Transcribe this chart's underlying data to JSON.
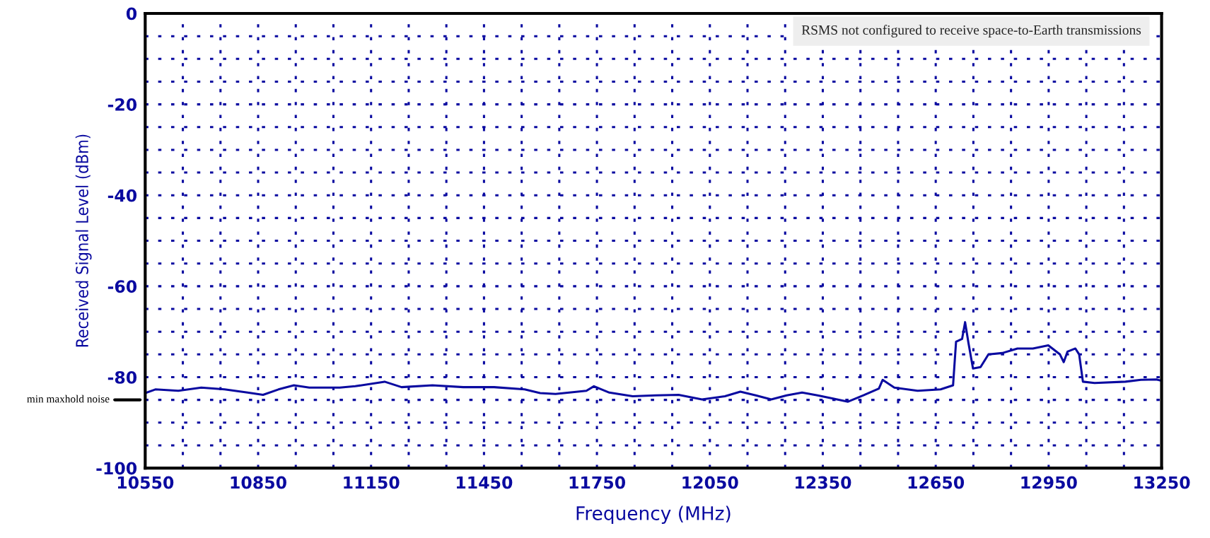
{
  "chart_data": {
    "type": "line",
    "xlabel": "Frequency (MHz)",
    "ylabel": "Received Signal Level (dBm)",
    "annotations": [
      "RSMS not configured to receive space-to-Earth transmissions"
    ],
    "x": [
      10550,
      10577,
      10638,
      10699,
      10761,
      10822,
      10863,
      10904,
      10945,
      10986,
      11067,
      11108,
      11186,
      11231,
      11313,
      11395,
      11477,
      11558,
      11599,
      11640,
      11722,
      11742,
      11783,
      11845,
      11906,
      11967,
      12029,
      12090,
      12131,
      12172,
      12213,
      12254,
      12295,
      12336,
      12377,
      12417,
      12458,
      12499,
      12509,
      12540,
      12602,
      12663,
      12696,
      12704,
      12720,
      12728,
      12737,
      12749,
      12769,
      12790,
      12827,
      12867,
      12908,
      12949,
      12980,
      12990,
      13000,
      13021,
      13031,
      13041,
      13072,
      13154,
      13195,
      13236,
      13250
    ],
    "series": [
      {
        "color": "#0a0aa0",
        "values": [
          -83.5,
          -82.7,
          -83,
          -82.3,
          -82.7,
          -83.4,
          -83.9,
          -82.7,
          -81.8,
          -82.3,
          -82.3,
          -82,
          -81,
          -82.2,
          -81.8,
          -82.2,
          -82.2,
          -82.7,
          -83.5,
          -83.7,
          -83,
          -82,
          -83.4,
          -84.2,
          -84,
          -83.9,
          -84.9,
          -84.2,
          -83.2,
          -84,
          -84.9,
          -84,
          -83.4,
          -84,
          -84.7,
          -85.4,
          -84,
          -82.5,
          -80.6,
          -82.3,
          -83,
          -82.7,
          -81.8,
          -72.2,
          -71.6,
          -67.9,
          -72.5,
          -78.1,
          -77.8,
          -75,
          -74.7,
          -73.7,
          -73.7,
          -73,
          -75,
          -76.7,
          -74.4,
          -73.7,
          -75,
          -81,
          -81.3,
          -81,
          -80.6,
          -80.5,
          -80.8
        ]
      }
    ],
    "xlim": [
      10550,
      13250
    ],
    "xticks": [
      10550,
      {
        "value": 10650,
        "label": null
      },
      {
        "value": 10750,
        "label": null
      },
      10850,
      {
        "value": 10950,
        "label": null
      },
      {
        "value": 11050,
        "label": null
      },
      11150,
      {
        "value": 11250,
        "label": null
      },
      {
        "value": 11350,
        "label": null
      },
      11450,
      {
        "value": 11550,
        "label": null
      },
      {
        "value": 11650,
        "label": null
      },
      11750,
      {
        "value": 11850,
        "label": null
      },
      {
        "value": 11950,
        "label": null
      },
      12050,
      {
        "value": 12150,
        "label": null
      },
      {
        "value": 12250,
        "label": null
      },
      12350,
      {
        "value": 12450,
        "label": null
      },
      {
        "value": 12550,
        "label": null
      },
      12650,
      {
        "value": 12750,
        "label": null
      },
      {
        "value": 12850,
        "label": null
      },
      12950,
      {
        "value": 13050,
        "label": null
      },
      {
        "value": 13150,
        "label": null
      },
      13250
    ],
    "ylim": [
      -100,
      0
    ],
    "yticks": [
      -100,
      {
        "value": -95,
        "label": null
      },
      {
        "value": -90,
        "label": null
      },
      {
        "value": -85,
        "label": null
      },
      -80,
      {
        "value": -75,
        "label": null
      },
      {
        "value": -70,
        "label": null
      },
      {
        "value": -65,
        "label": null
      },
      -60,
      {
        "value": -55,
        "label": null
      },
      {
        "value": -50,
        "label": null
      },
      {
        "value": -45,
        "label": null
      },
      -40,
      {
        "value": -35,
        "label": null
      },
      {
        "value": -30,
        "label": null
      },
      {
        "value": -25,
        "label": null
      },
      -20,
      {
        "value": -15,
        "label": null
      },
      {
        "value": -10,
        "label": null
      },
      {
        "value": -5,
        "label": null
      },
      0
    ],
    "grid": true,
    "ref_lines": [
      {
        "axis": "y",
        "value": -85,
        "label": "min maxhold noise",
        "color": "#000000"
      }
    ]
  }
}
